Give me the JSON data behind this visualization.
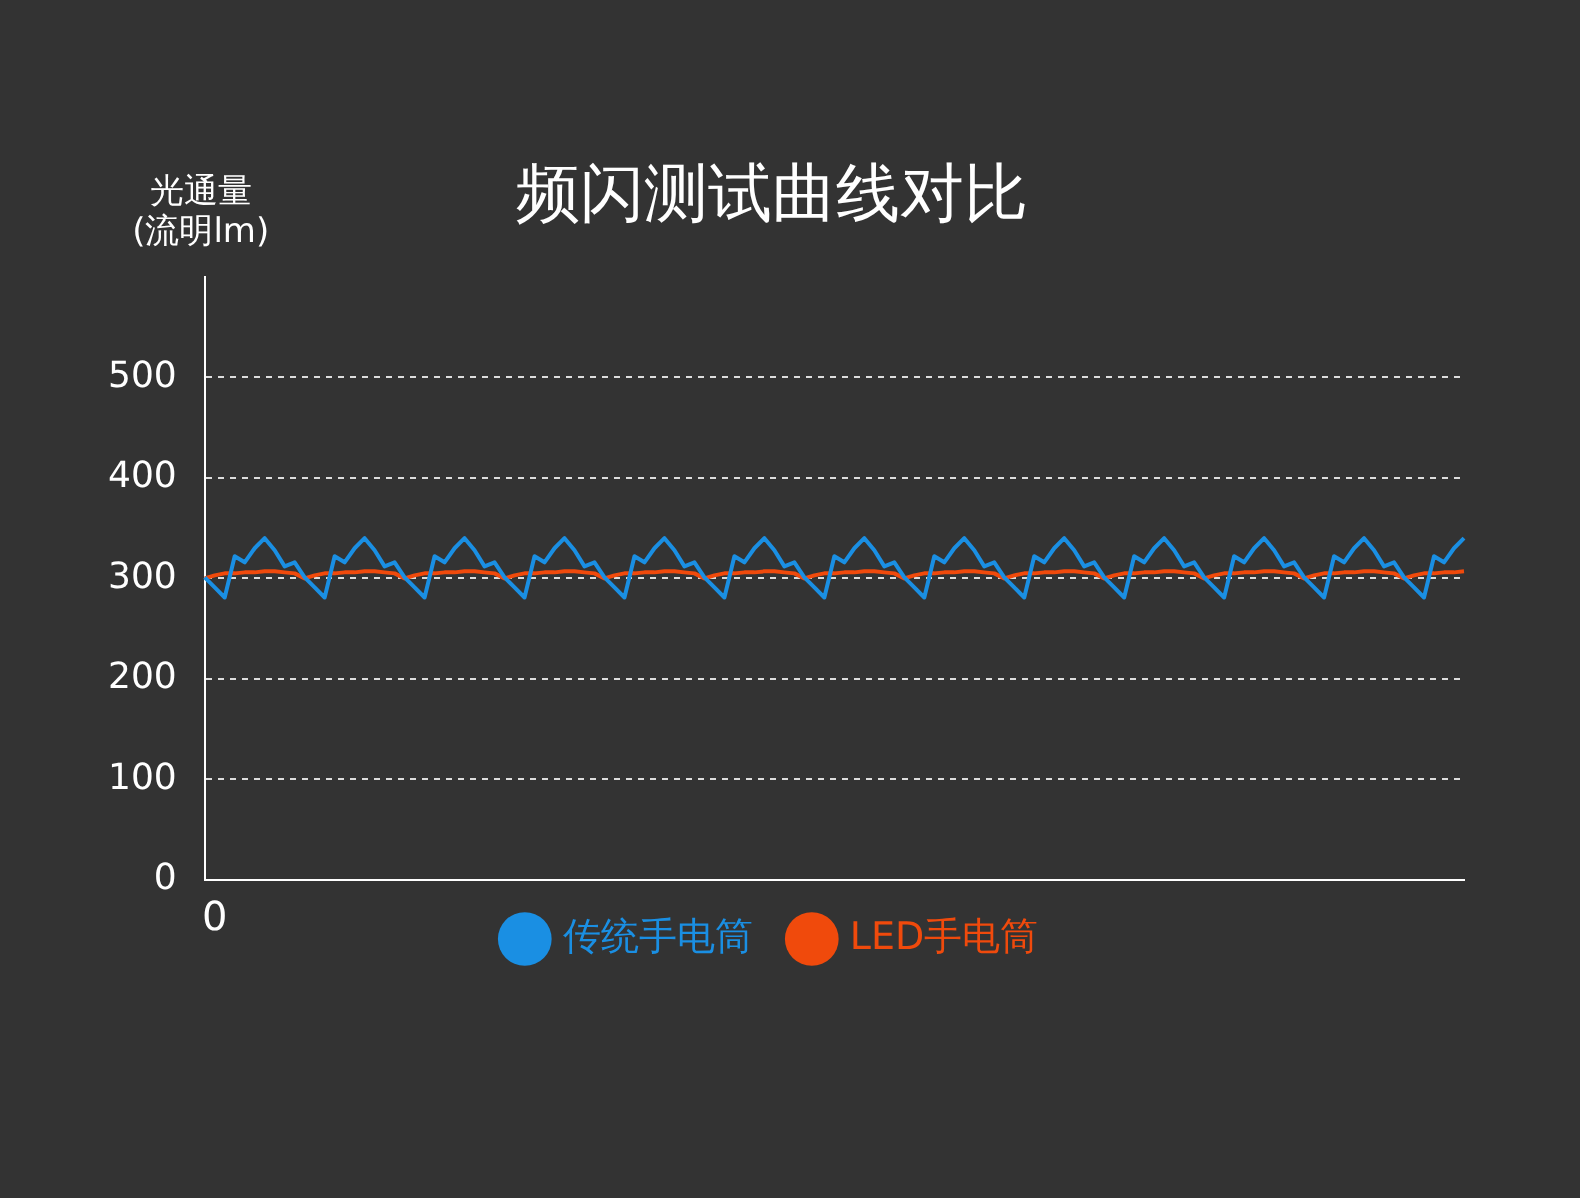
{
  "chart_data": {
    "type": "line",
    "title": "频闪测试曲线对比",
    "ylabel": "光通量\n(流明lm)",
    "annotations": [
      "0"
    ],
    "categories": [
      null,
      null,
      null,
      null,
      null,
      null,
      null,
      null,
      null,
      null,
      null,
      null,
      null,
      null,
      null,
      null,
      null,
      null,
      null,
      null,
      null,
      null,
      null,
      null,
      null,
      null,
      null,
      null,
      null,
      null,
      null,
      null,
      null,
      null,
      null,
      null,
      null,
      null,
      null,
      null,
      null,
      null,
      null,
      null,
      null,
      null,
      null,
      null,
      null,
      null,
      null,
      null,
      null,
      null,
      null,
      null,
      null,
      null,
      null,
      null,
      null,
      null,
      null,
      null,
      null,
      null,
      null,
      null,
      null,
      null,
      null,
      null,
      null,
      null,
      null,
      null,
      null,
      null,
      null,
      null,
      null,
      null,
      null,
      null,
      null,
      null,
      null,
      null,
      null,
      null,
      null,
      null,
      null,
      null,
      null,
      null,
      null,
      null,
      null,
      null,
      null,
      null,
      null,
      null,
      null,
      null,
      null,
      null,
      null,
      null,
      null,
      null,
      null,
      null,
      null,
      null,
      null,
      null,
      null,
      null,
      null,
      null,
      null,
      null,
      null,
      null,
      null
    ],
    "series": [
      {
        "name": "传统手电筒",
        "color": "#1a8fe3",
        "values": [
          301,
          291,
          281,
          322,
          316,
          330,
          340,
          328,
          312,
          316,
          301,
          291,
          281,
          322,
          316,
          330,
          340,
          328,
          312,
          316,
          301,
          291,
          281,
          322,
          316,
          330,
          340,
          328,
          312,
          316,
          301,
          291,
          281,
          322,
          316,
          330,
          340,
          328,
          312,
          316,
          301,
          291,
          281,
          322,
          316,
          330,
          340,
          328,
          312,
          316,
          301,
          291,
          281,
          322,
          316,
          330,
          340,
          328,
          312,
          316,
          301,
          291,
          281,
          322,
          316,
          330,
          340,
          328,
          312,
          316,
          301,
          291,
          281,
          322,
          316,
          330,
          340,
          328,
          312,
          316,
          301,
          291,
          281,
          322,
          316,
          330,
          340,
          328,
          312,
          316,
          301,
          291,
          281,
          322,
          316,
          330,
          340,
          328,
          312,
          316,
          301,
          291,
          281,
          322,
          316,
          330,
          340,
          328,
          312,
          316,
          301,
          291,
          281,
          322,
          316,
          330,
          340,
          328,
          312,
          316,
          301,
          291,
          281,
          322,
          316,
          330,
          340
        ]
      },
      {
        "name": "LED手电筒",
        "color": "#f04a0c",
        "values": [
          300,
          303,
          305,
          305,
          306,
          306,
          307,
          307,
          306,
          305,
          300,
          303,
          305,
          305,
          306,
          306,
          307,
          307,
          306,
          305,
          300,
          303,
          305,
          305,
          306,
          306,
          307,
          307,
          306,
          305,
          300,
          303,
          305,
          305,
          306,
          306,
          307,
          307,
          306,
          305,
          300,
          303,
          305,
          305,
          306,
          306,
          307,
          307,
          306,
          305,
          300,
          303,
          305,
          305,
          306,
          306,
          307,
          307,
          306,
          305,
          300,
          303,
          305,
          305,
          306,
          306,
          307,
          307,
          306,
          305,
          300,
          303,
          305,
          305,
          306,
          306,
          307,
          307,
          306,
          305,
          300,
          303,
          305,
          305,
          306,
          306,
          307,
          307,
          306,
          305,
          300,
          303,
          305,
          305,
          306,
          306,
          307,
          307,
          306,
          305,
          300,
          303,
          305,
          305,
          306,
          306,
          307,
          307,
          306,
          305,
          300,
          303,
          305,
          305,
          306,
          306,
          307,
          307,
          306,
          305,
          300,
          303,
          305,
          305,
          306,
          306,
          307
        ]
      }
    ],
    "ylim": [
      0,
      600
    ],
    "yticks": [
      0,
      100,
      200,
      300,
      400,
      500
    ],
    "grid": "y",
    "legend": "bottom",
    "marker": "none",
    "line_style": "solid"
  }
}
